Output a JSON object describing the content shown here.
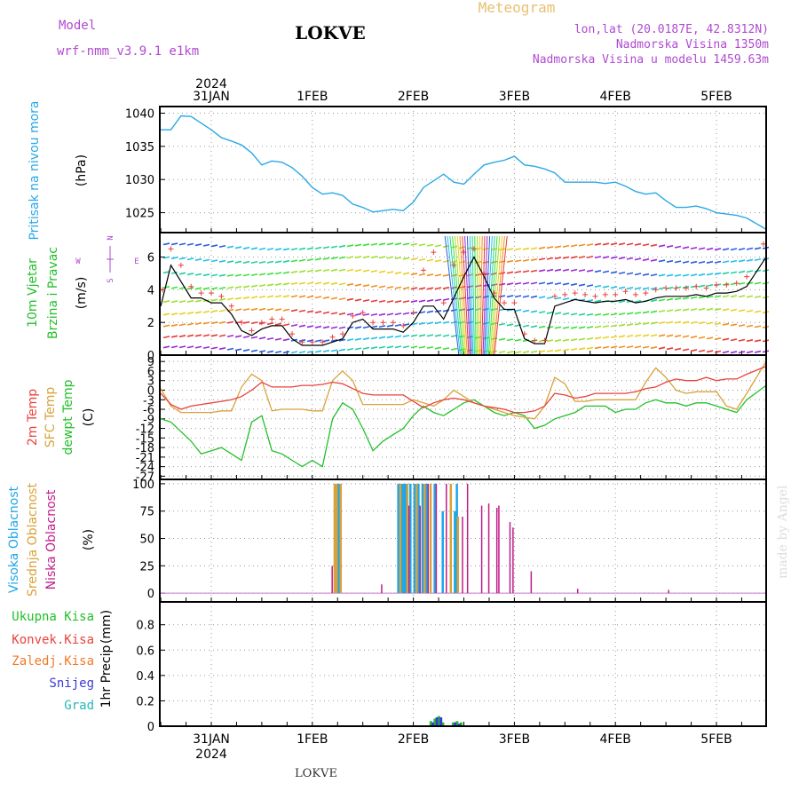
{
  "header": {
    "model_label": "Model",
    "model_name": "wrf-nmm_v3.9.1  e1km",
    "location": "LOKVE",
    "product": "Meteogram",
    "coords": "lon,lat (20.0187E, 42.8312N)",
    "elevation": "Nadmorska Visina 1350m",
    "model_elevation": "Nadmorska Visina u modelu 1459.63m"
  },
  "footer": {
    "location": "LOKVE"
  },
  "credit": "made by Angel",
  "colors": {
    "pressure": "#2aa8e6",
    "temp_2m": "#e8423c",
    "temp_sfc": "#d9a23a",
    "dewpoint": "#22c02a",
    "cloud_high": "#1ea6e8",
    "cloud_mid": "#d9a23a",
    "cloud_low": "#c01d8a",
    "precip_total": "#22c02a",
    "precip_conv": "#e8423c",
    "precip_frozen": "#f07a2a",
    "precip_snow": "#3a3ad8",
    "precip_graupel": "#22b8b8",
    "wind_speed": "#000000",
    "wind_gust": "#e8423c",
    "wind_legend": "#b04ad0",
    "grid": "#999999"
  },
  "time_axis": {
    "year": "2024",
    "days": [
      "31JAN",
      "1FEB",
      "2FEB",
      "3FEB",
      "4FEB",
      "5FEB"
    ]
  },
  "chart_data": [
    {
      "type": "line",
      "panel": "pressure",
      "ylabel": "Pritisak na nivou mora",
      "unit": "(hPa)",
      "yticks": [
        1025,
        1030,
        1035,
        1040
      ],
      "ylim": [
        1022,
        1041
      ],
      "x_unit": "days since 31JAN 00UTC",
      "x": [
        -0.5,
        -0.4,
        -0.3,
        -0.2,
        -0.1,
        0.0,
        0.1,
        0.2,
        0.3,
        0.4,
        0.5,
        0.6,
        0.7,
        0.8,
        0.9,
        1.0,
        1.1,
        1.2,
        1.3,
        1.4,
        1.5,
        1.6,
        1.7,
        1.8,
        1.9,
        2.0,
        2.1,
        2.2,
        2.3,
        2.4,
        2.5,
        2.6,
        2.7,
        2.8,
        2.9,
        3.0,
        3.1,
        3.2,
        3.3,
        3.4,
        3.5,
        3.6,
        3.7,
        3.8,
        3.9,
        4.0,
        4.1,
        4.2,
        4.3,
        4.4,
        4.5,
        4.6,
        4.7,
        4.8,
        4.9,
        5.0,
        5.1,
        5.2,
        5.3,
        5.5
      ],
      "series": [
        {
          "name": "",
          "values": [
            1037.5,
            1037.5,
            1039.6,
            1039.5,
            1038.5,
            1037.5,
            1036.3,
            1035.8,
            1035.2,
            1034.0,
            1032.2,
            1032.8,
            1032.6,
            1031.8,
            1030.5,
            1028.8,
            1027.8,
            1028.0,
            1027.6,
            1026.3,
            1025.8,
            1025.1,
            1025.3,
            1025.5,
            1025.3,
            1026.6,
            1028.8,
            1029.8,
            1030.8,
            1029.6,
            1029.3,
            1030.8,
            1032.2,
            1032.6,
            1032.9,
            1033.5,
            1032.2,
            1032.0,
            1031.6,
            1031.0,
            1029.6,
            1029.6,
            1029.6,
            1029.6,
            1029.4,
            1029.6,
            1029.0,
            1028.2,
            1027.8,
            1028.0,
            1026.8,
            1025.8,
            1025.8,
            1026.0,
            1025.6,
            1025.0,
            1024.8,
            1024.6,
            1024.2,
            1022.5
          ]
        }
      ]
    },
    {
      "type": "line",
      "panel": "wind",
      "ylabel": [
        "10m Vjetar",
        "Brzina i Pravac"
      ],
      "unit": "(m/s)",
      "compass": {
        "n": "N",
        "s": "S",
        "w": "W",
        "e": "E"
      },
      "yticks": [
        0,
        2,
        4,
        6
      ],
      "ylim": [
        0,
        7.5
      ],
      "x": [
        -0.5,
        -0.4,
        -0.3,
        -0.2,
        -0.1,
        0.0,
        0.1,
        0.2,
        0.3,
        0.4,
        0.5,
        0.6,
        0.7,
        0.8,
        0.9,
        1.0,
        1.1,
        1.2,
        1.3,
        1.4,
        1.5,
        1.6,
        1.7,
        1.8,
        1.9,
        2.0,
        2.1,
        2.2,
        2.3,
        2.4,
        2.5,
        2.6,
        2.7,
        2.8,
        2.9,
        3.0,
        3.1,
        3.2,
        3.3,
        3.4,
        3.5,
        3.6,
        3.7,
        3.8,
        3.9,
        4.0,
        4.1,
        4.2,
        4.3,
        4.4,
        4.5,
        4.6,
        4.7,
        4.8,
        4.9,
        5.0,
        5.1,
        5.2,
        5.3,
        5.5
      ],
      "series": [
        {
          "name": "",
          "values": [
            3.0,
            5.5,
            4.5,
            3.5,
            3.5,
            3.2,
            3.2,
            2.5,
            1.5,
            1.2,
            1.6,
            1.8,
            1.8,
            1.0,
            0.6,
            0.6,
            0.6,
            0.8,
            1.0,
            2.0,
            2.2,
            1.6,
            1.6,
            1.6,
            1.4,
            2.0,
            3.0,
            3.0,
            2.2,
            3.5,
            4.8,
            6.0,
            4.8,
            3.5,
            2.8,
            2.8,
            1.0,
            0.7,
            0.7,
            3.0,
            3.2,
            3.4,
            3.3,
            3.2,
            3.3,
            3.3,
            3.4,
            3.2,
            3.3,
            3.5,
            3.6,
            3.6,
            3.6,
            3.7,
            3.6,
            3.8,
            3.8,
            3.9,
            4.2,
            6.0
          ]
        },
        {
          "name": "",
          "values": [
            4.0,
            6.5,
            5.5,
            4.2,
            3.8,
            3.8,
            3.6,
            3.0,
            2.0,
            1.5,
            2.0,
            2.2,
            2.2,
            1.3,
            0.8,
            0.8,
            0.8,
            1.1,
            1.3,
            2.4,
            2.6,
            2.0,
            2.0,
            2.0,
            1.8,
            2.6,
            5.2,
            6.3,
            3.2,
            5.5,
            6.3,
            6.5,
            5.0,
            3.8,
            3.2,
            3.2,
            1.3,
            0.9,
            0.9,
            3.6,
            3.7,
            3.8,
            3.7,
            3.6,
            3.7,
            3.7,
            3.9,
            3.7,
            3.8,
            4.0,
            4.1,
            4.1,
            4.1,
            4.2,
            4.1,
            4.3,
            4.3,
            4.4,
            4.8,
            6.8
          ]
        }
      ]
    },
    {
      "type": "line",
      "panel": "temperature",
      "ylabel": [
        "2m Temp",
        "SFC Temp",
        "dewpt Temp"
      ],
      "unit": "(C)",
      "yticks": [
        9,
        6,
        3,
        0,
        -3,
        -6,
        -9,
        -12,
        -15,
        -18,
        -21,
        -24,
        -27
      ],
      "ylim": [
        -28,
        11
      ],
      "x": [
        -0.5,
        -0.4,
        -0.3,
        -0.2,
        -0.1,
        0.0,
        0.1,
        0.2,
        0.3,
        0.4,
        0.5,
        0.6,
        0.7,
        0.8,
        0.9,
        1.0,
        1.1,
        1.2,
        1.3,
        1.4,
        1.5,
        1.6,
        1.7,
        1.8,
        1.9,
        2.0,
        2.1,
        2.2,
        2.3,
        2.4,
        2.5,
        2.6,
        2.7,
        2.8,
        2.9,
        3.0,
        3.1,
        3.2,
        3.3,
        3.4,
        3.5,
        3.6,
        3.7,
        3.8,
        3.9,
        4.0,
        4.1,
        4.2,
        4.3,
        4.4,
        4.5,
        4.6,
        4.7,
        4.8,
        4.9,
        5.0,
        5.1,
        5.2,
        5.3,
        5.5
      ],
      "series": [
        {
          "name": "2m Temp",
          "values": [
            -1.0,
            -4.5,
            -6.0,
            -5.0,
            -4.5,
            -4.0,
            -3.5,
            -3.0,
            -2.0,
            0.0,
            2.5,
            1.0,
            1.0,
            1.0,
            1.5,
            1.5,
            1.8,
            2.5,
            2.0,
            0.5,
            -1.0,
            -1.5,
            -1.5,
            -1.5,
            -1.5,
            -3.5,
            -5.5,
            -4.0,
            -3.0,
            -2.5,
            -3.0,
            -4.0,
            -5.0,
            -5.5,
            -6.0,
            -7.0,
            -7.0,
            -6.5,
            -5.0,
            -1.0,
            -1.5,
            -2.5,
            -2.0,
            -1.0,
            -1.0,
            -1.0,
            -1.0,
            -0.5,
            0.5,
            1.0,
            2.5,
            3.5,
            3.0,
            3.0,
            4.0,
            3.0,
            3.5,
            3.5,
            5.0,
            7.5
          ]
        },
        {
          "name": "SFC Temp",
          "values": [
            0.5,
            -5.0,
            -7.0,
            -7.0,
            -7.0,
            -7.0,
            -6.5,
            -6.5,
            1.0,
            5.0,
            3.0,
            -6.5,
            -6.0,
            -6.0,
            -6.0,
            -6.5,
            -6.5,
            3.0,
            6.0,
            3.0,
            -4.5,
            -4.5,
            -4.5,
            -4.5,
            -4.5,
            -3.0,
            -4.0,
            -5.0,
            -3.0,
            0.0,
            -2.0,
            -4.0,
            -5.0,
            -6.0,
            -7.0,
            -8.0,
            -8.5,
            -9.0,
            -5.0,
            4.0,
            2.0,
            -3.5,
            -3.5,
            -3.0,
            -3.0,
            -3.0,
            -3.0,
            -3.0,
            2.5,
            7.0,
            4.0,
            0.0,
            -1.0,
            -0.5,
            -0.5,
            -0.5,
            -5.0,
            -6.0,
            -1.0,
            9.0
          ]
        },
        {
          "name": "dewpt Temp",
          "values": [
            -9.0,
            -10.0,
            -13.0,
            -16.0,
            -20.0,
            -19.0,
            -18.0,
            -20.0,
            -22.0,
            -10.0,
            -8.0,
            -19.0,
            -20.0,
            -22.0,
            -24.0,
            -22.0,
            -24.0,
            -9.0,
            -4.0,
            -6.0,
            -12.0,
            -19.0,
            -16.0,
            -14.0,
            -12.0,
            -8.0,
            -5.0,
            -7.0,
            -8.0,
            -6.0,
            -4.0,
            -3.0,
            -5.0,
            -7.0,
            -8.0,
            -7.0,
            -8.0,
            -12.0,
            -11.0,
            -9.0,
            -8.0,
            -7.0,
            -5.0,
            -5.0,
            -5.0,
            -7.0,
            -6.0,
            -6.0,
            -4.0,
            -3.0,
            -4.0,
            -4.0,
            -5.0,
            -4.0,
            -4.0,
            -5.0,
            -6.0,
            -7.0,
            -3.0,
            1.5
          ]
        }
      ]
    },
    {
      "type": "bar",
      "panel": "clouds",
      "ylabel": [
        "Visoka Oblacnost",
        "Srednja Oblacnost",
        "Niska Oblacnost"
      ],
      "unit": "(%)",
      "yticks": [
        0,
        25,
        50,
        75,
        100
      ],
      "ylim": [
        -8,
        104
      ],
      "series": [
        {
          "name": "Visoka Oblacnost",
          "x": [
            1.24,
            1.25,
            1.26,
            1.84,
            1.85,
            1.88,
            1.9,
            1.92,
            1.96,
            2.0,
            2.04,
            2.08,
            2.12,
            2.2,
            2.28,
            2.4,
            2.42
          ],
          "values": [
            72,
            100,
            100,
            100,
            100,
            100,
            100,
            100,
            100,
            100,
            100,
            100,
            100,
            100,
            75,
            75,
            100
          ]
        },
        {
          "name": "Srednja Oblacnost",
          "x": [
            1.21,
            1.23,
            1.27,
            1.86,
            1.93,
            2.02,
            2.1,
            2.16,
            2.36,
            2.43
          ],
          "values": [
            100,
            100,
            100,
            100,
            100,
            100,
            100,
            100,
            100,
            70
          ]
        },
        {
          "name": "Niska Oblacnost",
          "x": [
            1.19,
            1.68,
            1.95,
            2.06,
            2.14,
            2.22,
            2.32,
            2.48,
            2.53,
            2.67,
            2.74,
            2.82,
            2.84,
            2.95,
            2.98,
            3.16,
            3.62,
            4.52
          ],
          "values": [
            25,
            8,
            80,
            80,
            100,
            100,
            100,
            70,
            100,
            80,
            82,
            78,
            80,
            65,
            60,
            20,
            4,
            3
          ]
        }
      ]
    },
    {
      "type": "bar",
      "panel": "precipitation",
      "ylabel": "1hr Precip",
      "unit": "(mm)",
      "yticks": [
        0,
        0.2,
        0.4,
        0.6,
        0.8
      ],
      "ylim": [
        0,
        0.98
      ],
      "legend": [
        "Ukupna Kisa",
        "Konvek.Kisa",
        "Zaledj.Kisa",
        "Snijeg",
        "Grad"
      ],
      "series": [
        {
          "name": "Ukupna Kisa",
          "x": [
            2.16,
            2.2,
            2.24,
            2.28,
            2.38,
            2.42,
            2.46
          ],
          "values": [
            0.04,
            0.06,
            0.08,
            0.03,
            0.03,
            0.04,
            0.03
          ]
        },
        {
          "name": "Snijeg",
          "x": [
            2.18,
            2.22,
            2.26,
            2.4,
            2.44
          ],
          "values": [
            0.03,
            0.07,
            0.07,
            0.03,
            0.02
          ]
        }
      ]
    }
  ]
}
